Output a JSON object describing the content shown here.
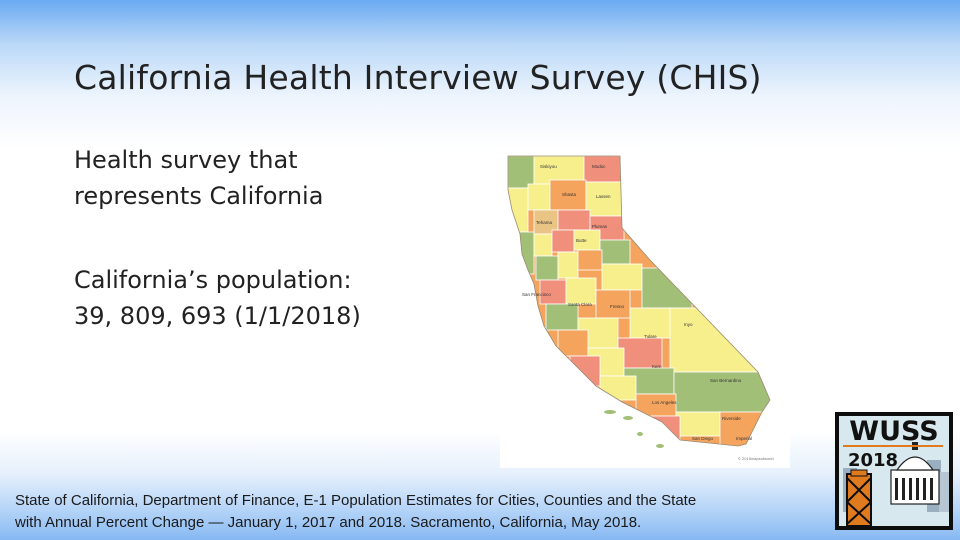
{
  "slide": {
    "title": "California Health Interview Survey (CHIS)",
    "bullets": [
      {
        "lines": [
          "Health survey that",
          "represents California"
        ]
      },
      {
        "lines": [
          "California’s population:",
          "39, 809, 693 (1/1/2018)"
        ]
      }
    ],
    "citation_lines": [
      "State of California, Department of Finance, E-1 Population Estimates for Cities, Counties and the State",
      "with Annual Percent Change — January 1, 2017 and 2018. Sacramento, California, May 2018."
    ]
  },
  "map": {
    "labels": [
      "Siskiyou",
      "Modoc",
      "Shasta",
      "Lassen",
      "Plumas",
      "Tehama",
      "Butte",
      "San Francisco",
      "Santa Clara",
      "Fresno",
      "Inyo",
      "Tulare",
      "Kern",
      "San Bernardino",
      "Los Angeles",
      "Riverside",
      "San Diego",
      "Imperial"
    ],
    "credit": "© 2015mapsofworld",
    "colors": {
      "orange": "#f4a45d",
      "yellow": "#f6ef8c",
      "green": "#a2bf78",
      "salmon": "#f08f7c",
      "tan": "#e9c484"
    }
  },
  "logo": {
    "name": "WUSS",
    "year": "2018"
  },
  "colors": {
    "top_gradient": "#6aaaf2",
    "bottom_gradient": "#86b8f3",
    "text": "#222222"
  }
}
